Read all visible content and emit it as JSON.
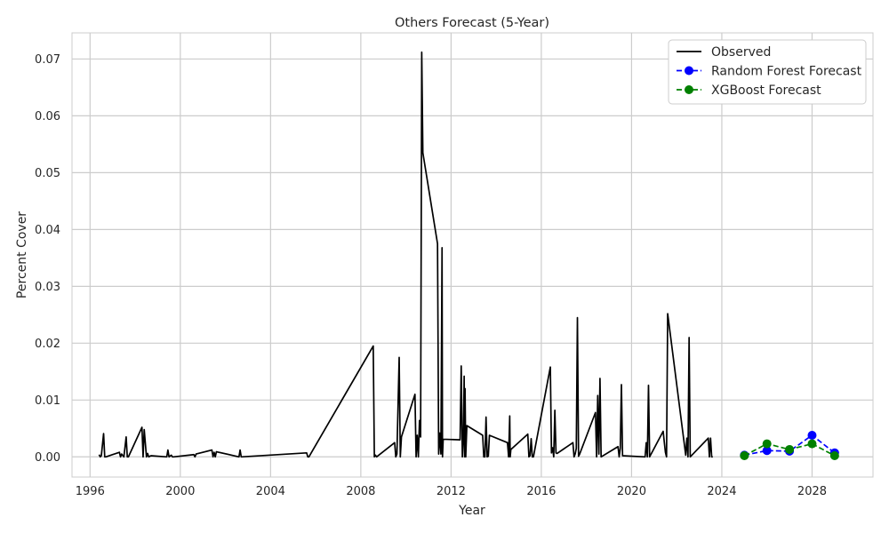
{
  "chart_data": {
    "type": "line",
    "title": "Others Forecast (5-Year)",
    "xlabel": "Year",
    "ylabel": "Percent Cover",
    "xlim": [
      1995.2,
      2030.7
    ],
    "ylim": [
      -0.00355,
      0.0746
    ],
    "x_ticks": [
      1996,
      2000,
      2004,
      2008,
      2012,
      2016,
      2020,
      2024,
      2028
    ],
    "x_tick_labels": [
      "1996",
      "2000",
      "2004",
      "2008",
      "2012",
      "2016",
      "2020",
      "2024",
      "2028"
    ],
    "y_ticks": [
      0.0,
      0.01,
      0.02,
      0.03,
      0.04,
      0.05,
      0.06,
      0.07
    ],
    "y_tick_labels": [
      "0.00",
      "0.01",
      "0.02",
      "0.03",
      "0.04",
      "0.05",
      "0.06",
      "0.07"
    ],
    "grid": true,
    "legend_position": "top-right",
    "colors": {
      "observed": "#000000",
      "random_forest": "#0000ff",
      "xgboost": "#008000",
      "grid": "#cccccc",
      "frame": "#cccccc"
    },
    "series": [
      {
        "name": "Observed",
        "style": "solid",
        "marker": "none",
        "x": [
          1996.4,
          1996.45,
          1996.5,
          1996.6,
          1996.65,
          1996.7,
          1997.3,
          1997.35,
          1997.4,
          1997.5,
          1997.6,
          1997.65,
          1997.7,
          1998.3,
          1998.35,
          1998.4,
          1998.5,
          1998.55,
          1998.6,
          1998.7,
          1999.4,
          1999.45,
          1999.5,
          1999.6,
          1999.65,
          1999.7,
          2000.6,
          2000.65,
          2000.7,
          2001.4,
          2001.45,
          2001.5,
          2001.55,
          2001.6,
          2002.6,
          2002.65,
          2002.7,
          2005.6,
          2005.65,
          2005.7,
          2008.55,
          2008.6,
          2008.65,
          2008.7,
          2009.5,
          2009.55,
          2009.6,
          2009.7,
          2009.75,
          2009.8,
          2010.4,
          2010.45,
          2010.5,
          2010.55,
          2010.6,
          2010.65,
          2010.7,
          2010.75,
          2011.4,
          2011.45,
          2011.5,
          2011.55,
          2011.6,
          2011.62,
          2011.65,
          2012.4,
          2012.45,
          2012.5,
          2012.55,
          2012.58,
          2012.6,
          2012.62,
          2012.65,
          2012.7,
          2013.4,
          2013.45,
          2013.5,
          2013.55,
          2013.6,
          2013.65,
          2013.7,
          2014.5,
          2014.55,
          2014.6,
          2014.62,
          2014.65,
          2015.4,
          2015.45,
          2015.5,
          2015.55,
          2015.6,
          2015.65,
          2016.4,
          2016.45,
          2016.5,
          2016.55,
          2016.6,
          2016.65,
          2016.7,
          2017.4,
          2017.45,
          2017.5,
          2017.55,
          2017.6,
          2017.65,
          2017.7,
          2018.4,
          2018.45,
          2018.5,
          2018.55,
          2018.6,
          2018.65,
          2019.4,
          2019.45,
          2019.5,
          2019.55,
          2019.6,
          2020.6,
          2020.65,
          2020.7,
          2020.75,
          2020.8,
          2021.4,
          2021.45,
          2021.5,
          2021.55,
          2021.6,
          2022.4,
          2022.45,
          2022.5,
          2022.55,
          2022.6,
          2023.4,
          2023.45,
          2023.5,
          2023.55,
          2023.6
        ],
        "y": [
          0.0004,
          0.0,
          0.0002,
          0.0041,
          0.0,
          0.0,
          0.0008,
          0.0,
          0.0005,
          0.0,
          0.0035,
          0.0,
          0.0,
          0.0052,
          0.0,
          0.0048,
          0.0,
          0.0006,
          0.0,
          0.0002,
          0.0,
          0.0012,
          0.0,
          0.0003,
          0.0,
          0.0,
          0.0004,
          0.0,
          0.0005,
          0.0012,
          0.0,
          0.0008,
          0.0,
          0.0009,
          0.0,
          0.0012,
          0.0,
          0.0007,
          0.0,
          0.0,
          0.0195,
          0.0,
          0.0003,
          0.0,
          0.0025,
          0.0,
          0.0005,
          0.0175,
          0.0,
          0.0035,
          0.011,
          0.0,
          0.0038,
          0.0,
          0.0064,
          0.0035,
          0.0712,
          0.0535,
          0.0375,
          0.0005,
          0.0042,
          0.0005,
          0.0368,
          0.0,
          0.0031,
          0.003,
          0.016,
          0.0,
          0.0037,
          0.0142,
          0.0,
          0.012,
          0.0,
          0.0055,
          0.0038,
          0.0,
          0.0,
          0.007,
          0.0,
          0.0001,
          0.0038,
          0.0025,
          0.0,
          0.0072,
          0.0,
          0.0013,
          0.004,
          0.0,
          0.0002,
          0.0032,
          0.0,
          0.0,
          0.0158,
          0.0007,
          0.0016,
          0.0,
          0.0082,
          0.0007,
          0.0006,
          0.0025,
          0.0,
          0.0005,
          0.0015,
          0.0245,
          0.0001,
          0.0005,
          0.0078,
          0.0,
          0.0108,
          0.0005,
          0.0138,
          0.0,
          0.0018,
          0.0,
          0.0015,
          0.0127,
          0.0002,
          0.0,
          0.0025,
          0.0,
          0.0126,
          0.0,
          0.0045,
          0.0026,
          0.0008,
          0.0,
          0.0252,
          0.0003,
          0.0033,
          0.0,
          0.021,
          0.0,
          0.0033,
          0.0,
          0.0033,
          0.0,
          0.0
        ]
      },
      {
        "name": "Random Forest Forecast",
        "style": "dashed",
        "marker": "circle",
        "x": [
          2025.0,
          2026.0,
          2027.0,
          2028.0,
          2029.0
        ],
        "y": [
          0.0003,
          0.0011,
          0.001,
          0.0038,
          0.0007
        ]
      },
      {
        "name": "XGBoost Forecast",
        "style": "dashed",
        "marker": "circle",
        "x": [
          2025.0,
          2026.0,
          2027.0,
          2028.0,
          2029.0
        ],
        "y": [
          0.0002,
          0.0023,
          0.0013,
          0.0023,
          0.0002
        ]
      }
    ]
  }
}
